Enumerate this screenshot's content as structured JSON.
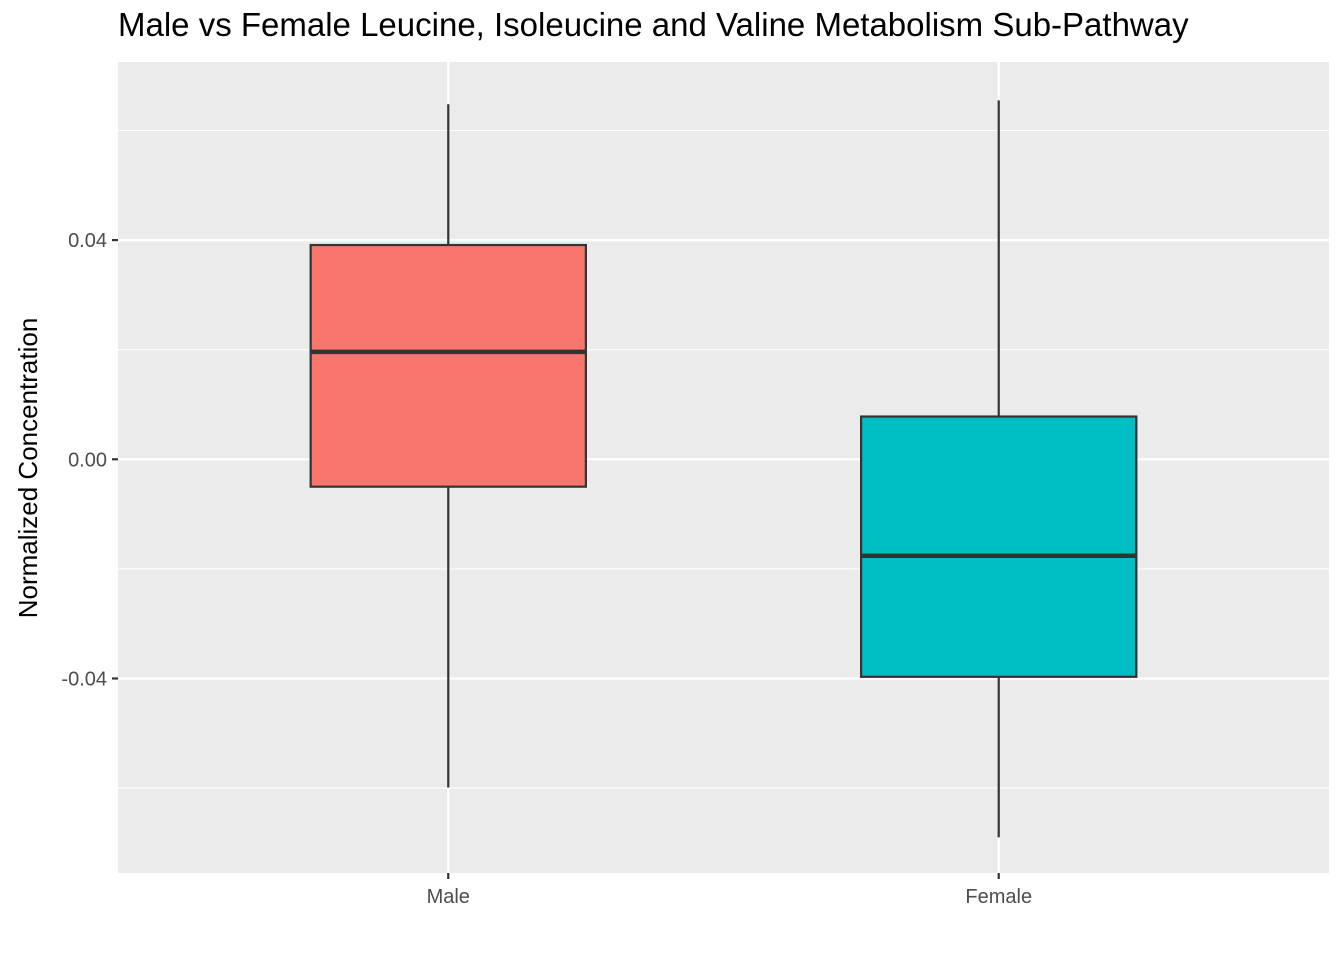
{
  "chart_data": {
    "type": "box",
    "title": "Male vs Female Leucine, Isoleucine and Valine Metabolism Sub-Pathway",
    "xlabel": "",
    "ylabel": "Normalized Concentration",
    "ylim": [
      -0.0755,
      0.0725
    ],
    "y_ticks": [
      {
        "value": 0.04,
        "label": "0.04"
      },
      {
        "value": 0.0,
        "label": "0.00"
      },
      {
        "value": -0.04,
        "label": "-0.04"
      }
    ],
    "y_minor_gridlines": [
      0.06,
      0.02,
      -0.02,
      -0.06
    ],
    "grid": true,
    "legend": "none",
    "categories": [
      "Male",
      "Female"
    ],
    "boxes": [
      {
        "category": "Male",
        "whisker_low": -0.0599,
        "q1": -0.005,
        "median": 0.0196,
        "q3": 0.0391,
        "whisker_high": 0.0648,
        "fill": "#F8766D"
      },
      {
        "category": "Female",
        "whisker_low": -0.069,
        "q1": -0.0397,
        "median": -0.0176,
        "q3": 0.0078,
        "whisker_high": 0.0655,
        "fill": "#00BFC4"
      }
    ],
    "colors": {
      "panel_background": "#EBEBEB",
      "gridline": "#FFFFFF",
      "box_outline": "#333333",
      "tick_text": "#4D4D4D"
    }
  }
}
